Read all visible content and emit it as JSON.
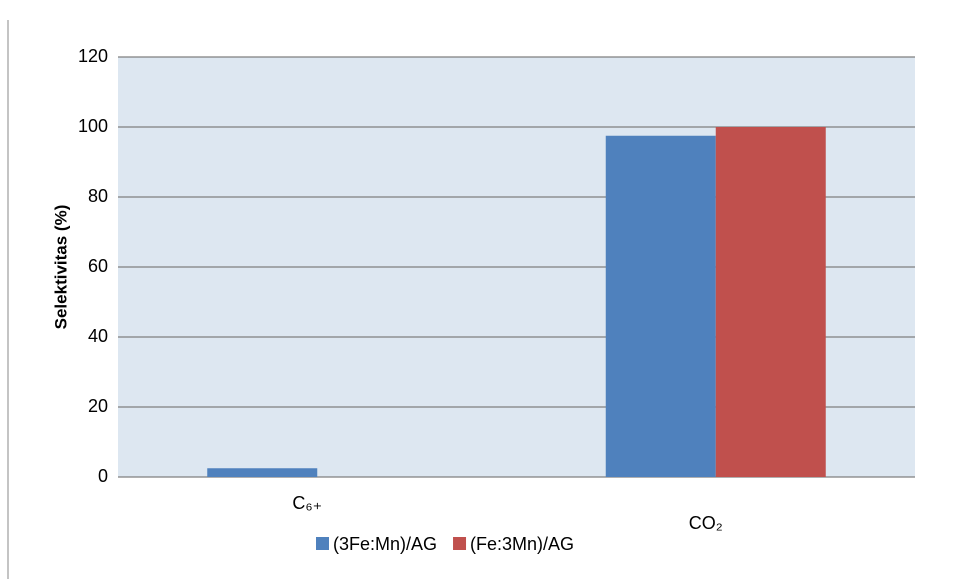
{
  "chart_data": {
    "type": "bar",
    "y_label": "Selektivitas (%)",
    "categories": [
      "C₆₊",
      "CO₂"
    ],
    "series": [
      {
        "name": "(3Fe:Mn)/AG",
        "color": "#4f81bd",
        "values": [
          2.5,
          97.5
        ]
      },
      {
        "name": "(Fe:3Mn)/AG",
        "color": "#c0504d",
        "values": [
          0,
          100
        ]
      }
    ],
    "ylim": [
      0,
      120
    ],
    "yticks": [
      0,
      20,
      40,
      60,
      80,
      100,
      120
    ],
    "grid": true,
    "legend": "bottom"
  }
}
